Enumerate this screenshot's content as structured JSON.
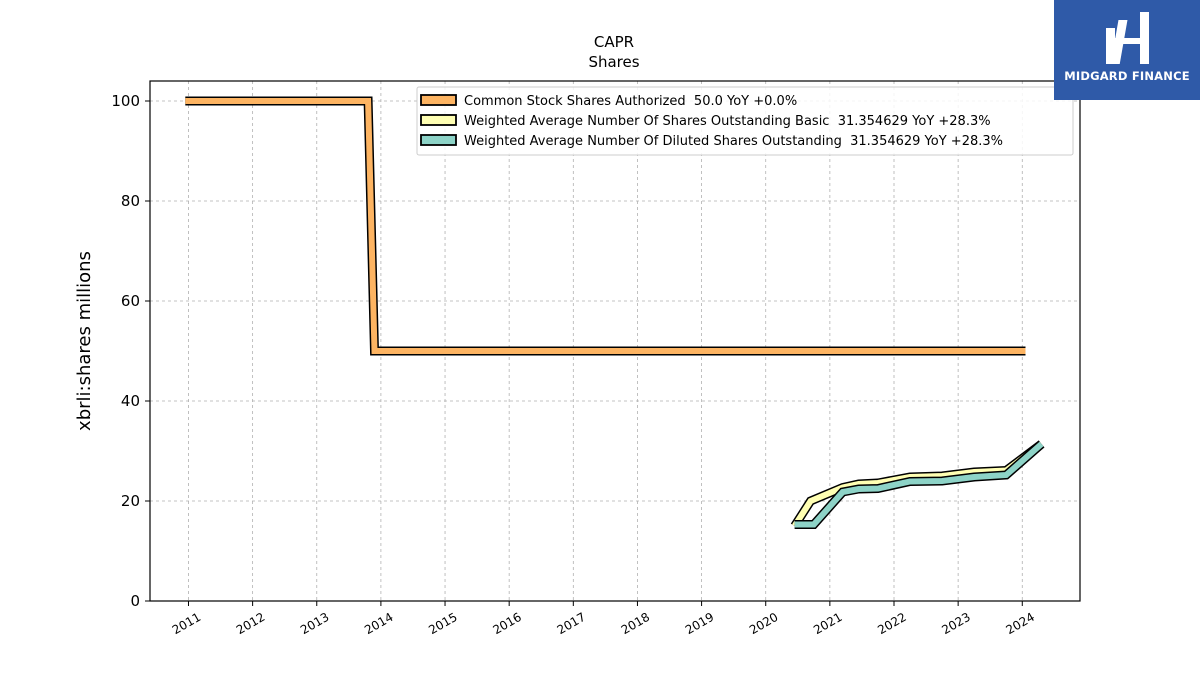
{
  "chart_data": {
    "type": "line",
    "title": "CAPR",
    "subtitle": "Shares",
    "ylabel": "xbrli:shares millions",
    "xlabel": "",
    "xlim": [
      2010.4,
      2024.9
    ],
    "ylim": [
      0,
      104
    ],
    "grid": true,
    "legend_position": "top-right",
    "x_ticks": [
      "2011",
      "2012",
      "2013",
      "2014",
      "2015",
      "2016",
      "2017",
      "2018",
      "2019",
      "2020",
      "2021",
      "2022",
      "2023",
      "2024"
    ],
    "y_ticks": [
      "0",
      "20",
      "40",
      "60",
      "80",
      "100"
    ],
    "series": [
      {
        "name": "Common Stock Shares Authorized  50.0 YoY +0.0%",
        "color": "#fdb462",
        "points": [
          [
            2010.95,
            100
          ],
          [
            2013.75,
            100
          ],
          [
            2013.8,
            100
          ],
          [
            2013.9,
            50
          ],
          [
            2024.05,
            50
          ]
        ]
      },
      {
        "name": "Weighted Average Number Of Shares Outstanding Basic  31.354629 YoY +28.3%",
        "color": "#ffffb3",
        "points": [
          [
            2020.45,
            15.0
          ],
          [
            2020.7,
            20.0
          ],
          [
            2021.2,
            22.7
          ],
          [
            2021.45,
            23.4
          ],
          [
            2021.75,
            23.6
          ],
          [
            2022.25,
            24.8
          ],
          [
            2022.75,
            25.0
          ],
          [
            2023.25,
            25.8
          ],
          [
            2023.75,
            26.1
          ],
          [
            2024.3,
            31.4
          ]
        ]
      },
      {
        "name": "Weighted Average Number Of Diluted Shares Outstanding  31.354629 YoY +28.3%",
        "color": "#8dd3c7",
        "points": [
          [
            2020.45,
            15.3
          ],
          [
            2020.75,
            15.3
          ],
          [
            2021.2,
            21.8
          ],
          [
            2021.45,
            22.4
          ],
          [
            2021.75,
            22.5
          ],
          [
            2022.25,
            23.9
          ],
          [
            2022.75,
            24.0
          ],
          [
            2023.25,
            24.8
          ],
          [
            2023.75,
            25.2
          ],
          [
            2024.3,
            31.4
          ]
        ]
      }
    ]
  },
  "logo": {
    "text": "MIDGARD FINANCE",
    "color": "#2f5aa8"
  }
}
